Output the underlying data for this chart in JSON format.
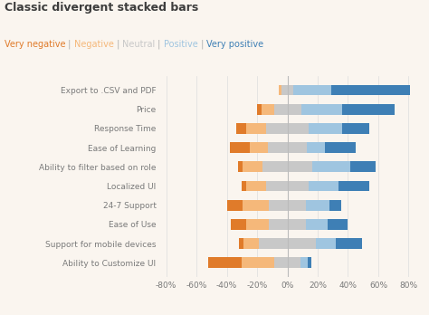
{
  "title": "Classic divergent stacked bars",
  "legend_labels": [
    "Very negative",
    "Negative",
    "Neutral",
    "Positive",
    "Very positive"
  ],
  "legend_colors": [
    "#e07b2a",
    "#f5b87a",
    "#c8c8c8",
    "#9fc5e0",
    "#3e7fb5"
  ],
  "legend_sep_color": "#aaaaaa",
  "categories": [
    "Export to .CSV and PDF",
    "Price",
    "Response Time",
    "Ease of Learning",
    "Ability to filter based on role",
    "Localized UI",
    "24-7 Support",
    "Ease of Use",
    "Support for mobile devices",
    "Ability to Customize UI"
  ],
  "data": {
    "very_negative": [
      0,
      3,
      7,
      13,
      3,
      3,
      10,
      10,
      3,
      22
    ],
    "negative": [
      2,
      8,
      13,
      12,
      13,
      13,
      17,
      15,
      10,
      22
    ],
    "neutral": [
      8,
      18,
      28,
      26,
      33,
      28,
      25,
      25,
      38,
      17
    ],
    "positive": [
      25,
      27,
      22,
      12,
      25,
      20,
      15,
      14,
      13,
      5
    ],
    "very_positive": [
      52,
      35,
      18,
      20,
      17,
      20,
      8,
      13,
      17,
      2
    ]
  },
  "colors": {
    "very_negative": "#e07b2a",
    "negative": "#f5b87a",
    "neutral": "#c8c8c8",
    "positive": "#9fc5e0",
    "very_positive": "#3e7fb5"
  },
  "xlim": [
    -85,
    85
  ],
  "xticks": [
    -80,
    -60,
    -40,
    -20,
    0,
    20,
    40,
    60,
    80
  ],
  "xtick_labels": [
    "-80%",
    "-60%",
    "-40%",
    "-20%",
    "0%",
    "20%",
    "40%",
    "60%",
    "80%"
  ],
  "background_color": "#faf5ef",
  "bar_height": 0.55,
  "title_color": "#3d3d3d",
  "label_color": "#7a7a7a",
  "grid_color": "#dddddd"
}
